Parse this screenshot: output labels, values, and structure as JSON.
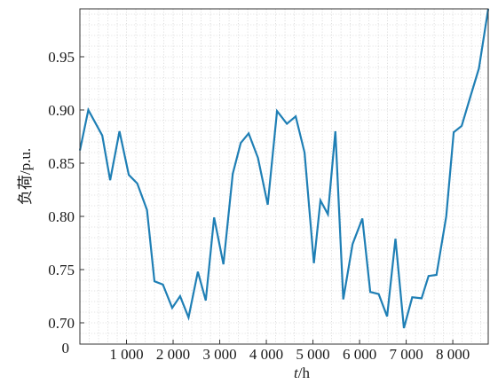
{
  "chart_data": {
    "type": "line",
    "xlabel": "t/h",
    "xlabel_italic_part": "t",
    "xlabel_rest": "/h",
    "ylabel": "负荷/p.u.",
    "x_ticks": [
      1000,
      2000,
      3000,
      4000,
      5000,
      6000,
      7000,
      8000
    ],
    "x_tick_labels": [
      "1 000",
      "2 000",
      "3 000",
      "4 000",
      "5 000",
      "6 000",
      "7 000",
      "8 000"
    ],
    "x_origin_label": "0",
    "xlim": [
      0,
      8760
    ],
    "y_ticks": [
      0.7,
      0.75,
      0.8,
      0.85,
      0.9,
      0.95
    ],
    "y_tick_labels": [
      "0.70",
      "0.75",
      "0.80",
      "0.85",
      "0.90",
      "0.95"
    ],
    "y_origin_label": "0",
    "ylim": [
      0.68,
      0.995
    ],
    "grid": true,
    "line_color": "#1f7fb5",
    "series": [
      {
        "x": [
          0,
          180,
          480,
          650,
          850,
          1050,
          1230,
          1440,
          1600,
          1780,
          1980,
          2150,
          2330,
          2530,
          2700,
          2880,
          3080,
          3280,
          3450,
          3620,
          3820,
          4030,
          4230,
          4440,
          4630,
          4820,
          5020,
          5160,
          5320,
          5480,
          5650,
          5850,
          6060,
          6230,
          6410,
          6590,
          6770,
          6950,
          7130,
          7330,
          7480,
          7650,
          7860,
          8020,
          8190,
          8360,
          8560,
          8760
        ],
        "y": [
          0.862,
          0.9,
          0.876,
          0.834,
          0.88,
          0.839,
          0.831,
          0.806,
          0.739,
          0.736,
          0.714,
          0.725,
          0.705,
          0.748,
          0.721,
          0.799,
          0.755,
          0.84,
          0.869,
          0.878,
          0.855,
          0.811,
          0.899,
          0.887,
          0.894,
          0.86,
          0.756,
          0.815,
          0.802,
          0.88,
          0.722,
          0.774,
          0.798,
          0.729,
          0.727,
          0.706,
          0.779,
          0.695,
          0.724,
          0.723,
          0.744,
          0.745,
          0.8,
          0.879,
          0.885,
          0.91,
          0.939,
          0.995
        ]
      }
    ]
  }
}
